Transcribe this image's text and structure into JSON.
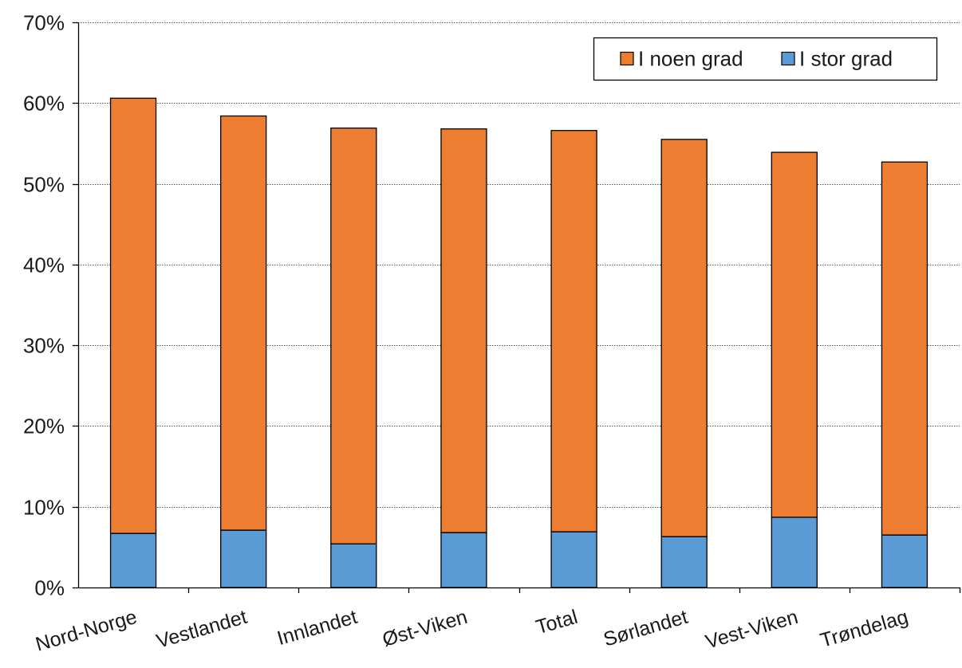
{
  "chart_data": {
    "type": "bar",
    "stacked": true,
    "categories": [
      "Nord-Norge",
      "Vestlandet",
      "Innlandet",
      "Øst-Viken",
      "Total",
      "Sørlandet",
      "Vest-Viken",
      "Trøndelag"
    ],
    "series": [
      {
        "name": "I stor grad",
        "color": "#5b9bd5",
        "values": [
          6.7,
          7.1,
          5.4,
          6.8,
          6.9,
          6.3,
          8.7,
          6.5
        ]
      },
      {
        "name": "I noen grad",
        "color": "#ed7d31",
        "values": [
          53.9,
          51.3,
          51.5,
          50.0,
          49.7,
          49.2,
          45.2,
          46.2
        ]
      }
    ],
    "ylim": [
      0,
      70
    ],
    "yticks": [
      0,
      10,
      20,
      30,
      40,
      50,
      60,
      70
    ],
    "ytick_labels": [
      "0%",
      "10%",
      "20%",
      "30%",
      "40%",
      "50%",
      "60%",
      "70%"
    ],
    "title": "",
    "xlabel": "",
    "ylabel": "",
    "grid": true,
    "legend": {
      "placement": "top-right",
      "order": [
        "I noen grad",
        "I stor grad"
      ]
    }
  }
}
